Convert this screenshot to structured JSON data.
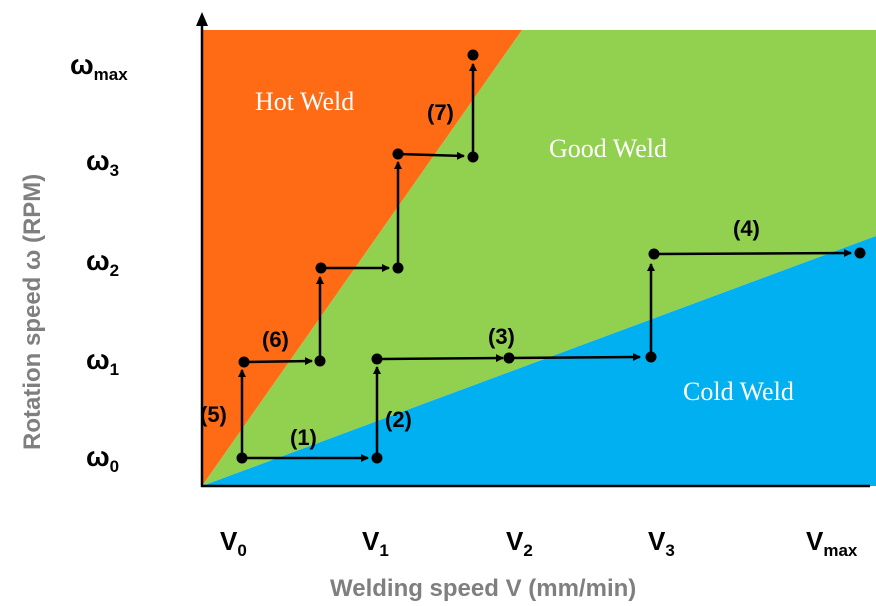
{
  "colors": {
    "hot": "#ff6a14",
    "good": "#92d050",
    "cold": "#00b0f0",
    "path": "#000000",
    "axis_title": "#7f7f7f"
  },
  "axes": {
    "x_title": "Welding speed V (mm/min)",
    "y_title": "Rotation speed ω (RPM)",
    "x_ticks": [
      {
        "main": "V",
        "sub": "0"
      },
      {
        "main": "V",
        "sub": "1"
      },
      {
        "main": "V",
        "sub": "2"
      },
      {
        "main": "V",
        "sub": "3"
      },
      {
        "main": "V",
        "sub": "max"
      }
    ],
    "y_ticks": [
      {
        "main": "ω",
        "sub": "max"
      },
      {
        "main": "ω",
        "sub": "3"
      },
      {
        "main": "ω",
        "sub": "2"
      },
      {
        "main": "ω",
        "sub": "1"
      },
      {
        "main": "ω",
        "sub": "0"
      }
    ]
  },
  "regions": {
    "hot": "Hot Weld",
    "good": "Good Weld",
    "cold": "Cold Weld"
  },
  "steps": [
    "(1)",
    "(2)",
    "(3)",
    "(4)",
    "(5)",
    "(6)",
    "(7)"
  ]
}
